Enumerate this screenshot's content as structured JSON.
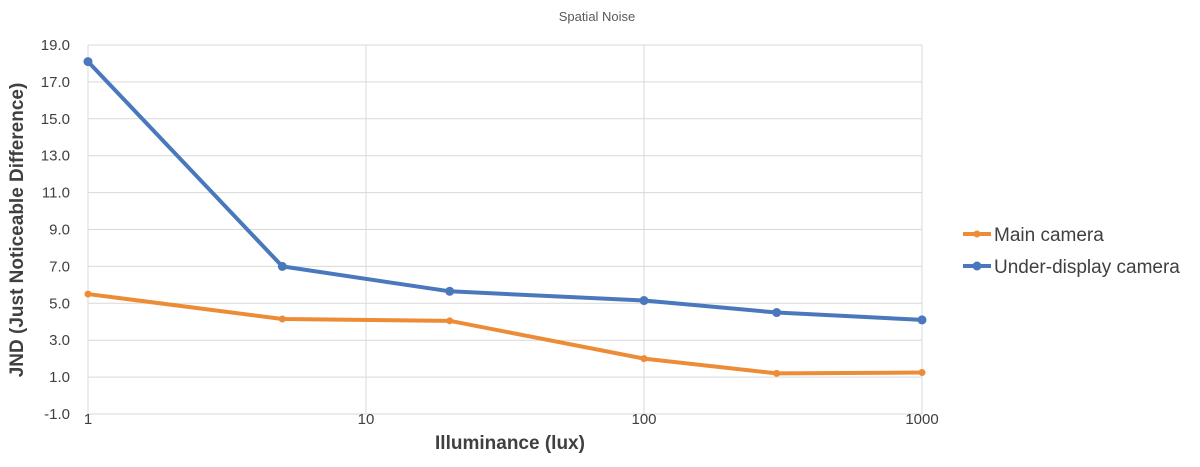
{
  "chart_data": {
    "type": "line",
    "title": "Spatial Noise",
    "xlabel": "Illuminance (lux)",
    "ylabel": "JND (Just Noticeable Difference)",
    "x_scale": "log",
    "xlim": [
      1,
      1000
    ],
    "ylim": [
      -1.0,
      19.0
    ],
    "x_ticks": [
      "1",
      "10",
      "100",
      "1000"
    ],
    "y_ticks": [
      "-1.0",
      "1.0",
      "3.0",
      "5.0",
      "7.0",
      "9.0",
      "11.0",
      "13.0",
      "15.0",
      "17.0",
      "19.0"
    ],
    "grid": true,
    "legend_position": "right",
    "series": [
      {
        "name": "Main camera",
        "color": "#ED8C36",
        "x": [
          1,
          5,
          20,
          100,
          300,
          1000
        ],
        "y": [
          5.5,
          4.15,
          4.05,
          2.0,
          1.2,
          1.25
        ]
      },
      {
        "name": "Under-display camera",
        "color": "#4A78BC",
        "x": [
          1,
          5,
          20,
          100,
          300,
          1000
        ],
        "y": [
          18.1,
          7.0,
          5.65,
          5.15,
          4.5,
          4.1
        ]
      }
    ]
  }
}
